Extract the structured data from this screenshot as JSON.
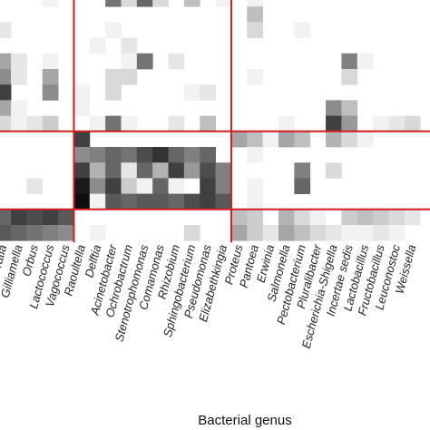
{
  "chart_data": {
    "type": "heatmap",
    "xlabel": "Bacterial genus",
    "ylabel": "",
    "title": "",
    "x_categories": [
      "Serratia",
      "Gilliamella",
      "Orbus",
      "Lactococcus",
      "Vagococcus",
      "Raoultella",
      "Delftia",
      "Acinetobacter",
      "Ochrobactrum",
      "Stenotrophomonas",
      "Comamonas",
      "Rhizobium",
      "Sphingobacterium",
      "Pseudomonas",
      "Elizabethkingia",
      "Proteus",
      "Pantoea",
      "Erwinia",
      "Salmonella",
      "Pectobacterium",
      "Pluralibacter",
      "Escherichia-Shigella",
      "Incertae sedis",
      "Lactobacillus",
      "Fructobacillus",
      "Leuconostoc",
      "Weissella"
    ],
    "n_rows": 16,
    "value_scale": "grayscale intensity 0-1 (white = 0, black = 1)",
    "values": [
      [
        0.0,
        0.0,
        0.0,
        0.05,
        0.0,
        0.0,
        0.0,
        0.55,
        0.15,
        0.6,
        0.15,
        0.0,
        0.25,
        0.0,
        0.05,
        0.0,
        0.05,
        0.0,
        0.0,
        0.0,
        0.0,
        0.0,
        0.0,
        0.0,
        0.0,
        0.0,
        0.0
      ],
      [
        0.0,
        0.0,
        0.0,
        0.0,
        0.0,
        0.0,
        0.0,
        0.0,
        0.0,
        0.0,
        0.0,
        0.0,
        0.0,
        0.0,
        0.0,
        0.0,
        0.25,
        0.0,
        0.0,
        0.0,
        0.0,
        0.0,
        0.0,
        0.0,
        0.0,
        0.0,
        0.0
      ],
      [
        0.1,
        0.0,
        0.0,
        0.0,
        0.0,
        0.0,
        0.0,
        0.05,
        0.0,
        0.0,
        0.0,
        0.0,
        0.0,
        0.0,
        0.0,
        0.0,
        0.15,
        0.0,
        0.0,
        0.05,
        0.0,
        0.0,
        0.0,
        0.0,
        0.0,
        0.0,
        0.0
      ],
      [
        0.0,
        0.0,
        0.0,
        0.0,
        0.0,
        0.0,
        0.05,
        0.0,
        0.1,
        0.0,
        0.0,
        0.0,
        0.0,
        0.0,
        0.0,
        0.0,
        0.0,
        0.0,
        0.0,
        0.0,
        0.0,
        0.0,
        0.0,
        0.0,
        0.0,
        0.0,
        0.0
      ],
      [
        0.35,
        0.1,
        0.0,
        0.05,
        0.0,
        0.0,
        0.0,
        0.0,
        0.05,
        0.55,
        0.0,
        0.1,
        0.0,
        0.0,
        0.0,
        0.0,
        0.0,
        0.0,
        0.0,
        0.0,
        0.0,
        0.0,
        0.5,
        0.05,
        0.0,
        0.0,
        0.0
      ],
      [
        0.45,
        0.1,
        0.0,
        0.35,
        0.0,
        0.0,
        0.0,
        0.15,
        0.15,
        0.0,
        0.0,
        0.0,
        0.0,
        0.0,
        0.0,
        0.0,
        0.05,
        0.0,
        0.0,
        0.0,
        0.0,
        0.0,
        0.15,
        0.0,
        0.0,
        0.0,
        0.0
      ],
      [
        0.75,
        0.0,
        0.0,
        0.45,
        0.0,
        0.05,
        0.0,
        0.15,
        0.0,
        0.0,
        0.0,
        0.0,
        0.05,
        0.1,
        0.0,
        0.0,
        0.0,
        0.0,
        0.0,
        0.0,
        0.0,
        0.0,
        0.0,
        0.0,
        0.0,
        0.0,
        0.0
      ],
      [
        0.35,
        0.05,
        0.0,
        0.0,
        0.0,
        0.05,
        0.0,
        0.0,
        0.0,
        0.0,
        0.0,
        0.0,
        0.0,
        0.0,
        0.0,
        0.0,
        0.0,
        0.0,
        0.0,
        0.0,
        0.0,
        0.45,
        0.25,
        0.0,
        0.0,
        0.0,
        0.0
      ],
      [
        0.15,
        0.05,
        0.1,
        0.2,
        0.0,
        0.0,
        0.05,
        0.55,
        0.05,
        0.0,
        0.0,
        0.1,
        0.0,
        0.25,
        0.0,
        0.0,
        0.0,
        0.0,
        0.05,
        0.0,
        0.0,
        0.75,
        0.4,
        0.0,
        0.05,
        0.1,
        0.15
      ],
      [
        0.0,
        0.0,
        0.0,
        0.0,
        0.0,
        0.75,
        0.0,
        0.0,
        0.0,
        0.0,
        0.0,
        0.0,
        0.0,
        0.0,
        0.0,
        0.35,
        0.25,
        0.05,
        0.35,
        0.25,
        0.0,
        0.3,
        0.15,
        0.05,
        0.0,
        0.0,
        0.0
      ],
      [
        0.0,
        0.0,
        0.0,
        0.0,
        0.0,
        0.45,
        0.5,
        0.6,
        0.55,
        0.7,
        0.8,
        0.6,
        0.5,
        0.6,
        0.0,
        0.0,
        0.05,
        0.0,
        0.0,
        0.0,
        0.0,
        0.0,
        0.0,
        0.0,
        0.0,
        0.0,
        0.0
      ],
      [
        0.0,
        0.0,
        0.0,
        0.0,
        0.0,
        0.75,
        0.3,
        0.6,
        0.1,
        0.6,
        0.3,
        0.75,
        0.4,
        0.7,
        0.5,
        0.0,
        0.0,
        0.0,
        0.0,
        0.5,
        0.0,
        0.15,
        0.0,
        0.0,
        0.0,
        0.0,
        0.0
      ],
      [
        0.0,
        0.0,
        0.1,
        0.0,
        0.0,
        0.9,
        0.45,
        0.75,
        0.2,
        0.05,
        0.6,
        0.05,
        0.0,
        0.75,
        0.5,
        0.0,
        0.05,
        0.0,
        0.0,
        0.6,
        0.0,
        0.0,
        0.0,
        0.0,
        0.0,
        0.0,
        0.0
      ],
      [
        0.0,
        0.0,
        0.0,
        0.0,
        0.0,
        0.95,
        0.05,
        0.65,
        0.6,
        0.65,
        0.65,
        0.6,
        0.7,
        0.75,
        0.65,
        0.0,
        0.05,
        0.0,
        0.0,
        0.0,
        0.0,
        0.0,
        0.0,
        0.0,
        0.0,
        0.0,
        0.0
      ],
      [
        0.6,
        0.75,
        0.7,
        0.75,
        0.65,
        0.0,
        0.0,
        0.0,
        0.0,
        0.0,
        0.0,
        0.0,
        0.0,
        0.0,
        0.0,
        0.25,
        0.2,
        0.0,
        0.3,
        0.15,
        0.05,
        0.0,
        0.2,
        0.25,
        0.2,
        0.15,
        0.1
      ],
      [
        0.65,
        0.6,
        0.55,
        0.5,
        0.45,
        0.0,
        0.05,
        0.0,
        0.0,
        0.0,
        0.0,
        0.0,
        0.15,
        0.0,
        0.0,
        0.35,
        0.2,
        0.1,
        0.35,
        0.25,
        0.15,
        0.1,
        0.05,
        0.05,
        0.1,
        0.05,
        0.0
      ]
    ],
    "dividers": {
      "vertical_after_column": [
        4,
        14
      ],
      "horizontal_after_row": [
        8,
        13
      ],
      "color": "#d01c1c"
    },
    "grid": false,
    "legend": "none"
  }
}
